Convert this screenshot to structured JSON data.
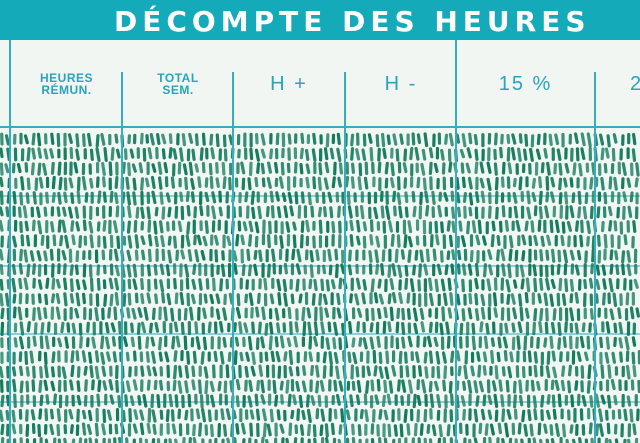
{
  "banner": {
    "title": "DÉCOMPTE DES HEURES"
  },
  "columns": [
    {
      "id": "partial-left",
      "label": ""
    },
    {
      "id": "heures-remun",
      "line1": "HEURES",
      "line2": "RÉMUN."
    },
    {
      "id": "total-sem",
      "line1": "TOTAL",
      "line2": "SEM."
    },
    {
      "id": "h-plus",
      "label": "H +"
    },
    {
      "id": "h-minus",
      "label": "H -"
    },
    {
      "id": "pct-15",
      "label": "15 %"
    },
    {
      "id": "partial-right",
      "label": "2"
    }
  ],
  "colors": {
    "banner": "#15aab9",
    "rule": "#35aec2",
    "ink": "#137a5c",
    "paper": "#f3f7f4"
  }
}
